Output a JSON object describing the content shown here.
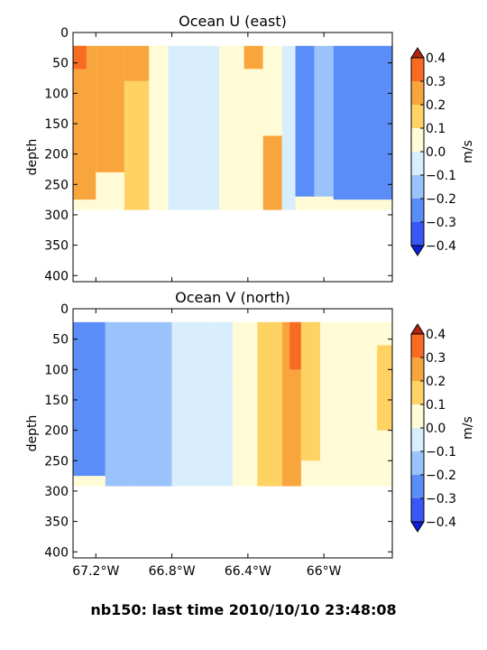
{
  "figure_title": "nb150: last time 2010/10/10 23:48:08",
  "colors": {
    "levels": [
      "#3a57f7",
      "#5b8df8",
      "#9ac3fb",
      "#d9eefd",
      "#fffbd6",
      "#ffd264",
      "#f9a53d",
      "#f76b23"
    ],
    "under": "#0b20d8",
    "over": "#b32410",
    "axes_edge": "#000000",
    "background": "#ffffff"
  },
  "chart_data": [
    {
      "type": "heatmap",
      "title": "Ocean U (east)",
      "ylabel": "depth",
      "ylim": [
        410,
        0
      ],
      "yticks": [
        "0",
        "50",
        "100",
        "150",
        "200",
        "250",
        "300",
        "350",
        "400"
      ],
      "xlim": [
        -67.32,
        -65.64
      ],
      "xticks": [
        {
          "value": -67.2,
          "label": "67.2°W"
        },
        {
          "value": -66.8,
          "label": "66.8°W"
        },
        {
          "value": -66.4,
          "label": "66.4°W"
        },
        {
          "value": -66.0,
          "label": "66°W"
        }
      ],
      "xticklabels_visible": false,
      "data_depth_range": [
        22,
        292
      ],
      "colorbar": {
        "label": "m/s",
        "range": [
          -0.4,
          0.4
        ],
        "ticks": [
          "0.4",
          "0.3",
          "0.2",
          "0.1",
          "0.0",
          "−0.1",
          "−0.2",
          "−0.3",
          "−0.4"
        ],
        "extend": "both"
      },
      "bands": [
        {
          "x": [
            -67.32,
            -67.2
          ],
          "depth": [
            22,
            275
          ],
          "value": 0.28
        },
        {
          "x": [
            -67.32,
            -67.25
          ],
          "depth": [
            22,
            60
          ],
          "value": 0.36
        },
        {
          "x": [
            -67.2,
            -67.05
          ],
          "depth": [
            22,
            230
          ],
          "value": 0.25
        },
        {
          "x": [
            -67.05,
            -66.92
          ],
          "depth": [
            22,
            80
          ],
          "value": 0.25
        },
        {
          "x": [
            -67.05,
            -66.92
          ],
          "depth": [
            80,
            292
          ],
          "value": 0.12
        },
        {
          "x": [
            -66.92,
            -66.82
          ],
          "depth": [
            22,
            292
          ],
          "value": 0.05
        },
        {
          "x": [
            -66.82,
            -66.55
          ],
          "depth": [
            22,
            292
          ],
          "value": -0.05
        },
        {
          "x": [
            -66.55,
            -66.42
          ],
          "depth": [
            22,
            292
          ],
          "value": 0.08
        },
        {
          "x": [
            -66.42,
            -66.32
          ],
          "depth": [
            22,
            60
          ],
          "value": 0.2
        },
        {
          "x": [
            -66.42,
            -66.32
          ],
          "depth": [
            60,
            292
          ],
          "value": 0.05
        },
        {
          "x": [
            -66.32,
            -66.22
          ],
          "depth": [
            22,
            60
          ],
          "value": 0.05
        },
        {
          "x": [
            -66.32,
            -66.22
          ],
          "depth": [
            60,
            170
          ],
          "value": 0.05
        },
        {
          "x": [
            -66.32,
            -66.22
          ],
          "depth": [
            170,
            292
          ],
          "value": 0.2
        },
        {
          "x": [
            -66.22,
            -66.15
          ],
          "depth": [
            22,
            292
          ],
          "value": -0.05
        },
        {
          "x": [
            -66.15,
            -66.05
          ],
          "depth": [
            22,
            270
          ],
          "value": -0.28
        },
        {
          "x": [
            -66.05,
            -65.95
          ],
          "depth": [
            22,
            270
          ],
          "value": -0.2
        },
        {
          "x": [
            -65.95,
            -65.64
          ],
          "depth": [
            22,
            275
          ],
          "value": -0.22
        }
      ]
    },
    {
      "type": "heatmap",
      "title": "Ocean V (north)",
      "ylabel": "depth",
      "ylim": [
        410,
        0
      ],
      "yticks": [
        "0",
        "50",
        "100",
        "150",
        "200",
        "250",
        "300",
        "350",
        "400"
      ],
      "xlim": [
        -67.32,
        -65.64
      ],
      "xticks": [
        {
          "value": -67.2,
          "label": "67.2°W"
        },
        {
          "value": -66.8,
          "label": "66.8°W"
        },
        {
          "value": -66.4,
          "label": "66.4°W"
        },
        {
          "value": -66.0,
          "label": "66°W"
        }
      ],
      "xticklabels_visible": true,
      "data_depth_range": [
        22,
        292
      ],
      "colorbar": {
        "label": "m/s",
        "range": [
          -0.4,
          0.4
        ],
        "ticks": [
          "0.4",
          "0.3",
          "0.2",
          "0.1",
          "0.0",
          "−0.1",
          "−0.2",
          "−0.3",
          "−0.4"
        ],
        "extend": "both"
      },
      "bands": [
        {
          "x": [
            -67.32,
            -67.15
          ],
          "depth": [
            22,
            275
          ],
          "value": -0.22
        },
        {
          "x": [
            -67.15,
            -67.0
          ],
          "depth": [
            22,
            292
          ],
          "value": -0.15
        },
        {
          "x": [
            -67.0,
            -66.8
          ],
          "depth": [
            22,
            292
          ],
          "value": -0.12
        },
        {
          "x": [
            -66.8,
            -66.6
          ],
          "depth": [
            22,
            292
          ],
          "value": -0.08
        },
        {
          "x": [
            -66.6,
            -66.48
          ],
          "depth": [
            22,
            120
          ],
          "value": -0.05
        },
        {
          "x": [
            -66.6,
            -66.48
          ],
          "depth": [
            120,
            292
          ],
          "value": -0.1
        },
        {
          "x": [
            -66.48,
            -66.35
          ],
          "depth": [
            22,
            292
          ],
          "value": 0.05
        },
        {
          "x": [
            -66.35,
            -66.22
          ],
          "depth": [
            22,
            292
          ],
          "value": 0.12
        },
        {
          "x": [
            -66.22,
            -66.12
          ],
          "depth": [
            22,
            292
          ],
          "value": 0.2
        },
        {
          "x": [
            -66.18,
            -66.12
          ],
          "depth": [
            22,
            100
          ],
          "value": 0.32
        },
        {
          "x": [
            -66.12,
            -66.02
          ],
          "depth": [
            22,
            250
          ],
          "value": 0.18
        },
        {
          "x": [
            -66.02,
            -65.64
          ],
          "depth": [
            22,
            275
          ],
          "value": 0.05
        },
        {
          "x": [
            -65.72,
            -65.64
          ],
          "depth": [
            60,
            200
          ],
          "value": 0.15
        }
      ]
    }
  ]
}
